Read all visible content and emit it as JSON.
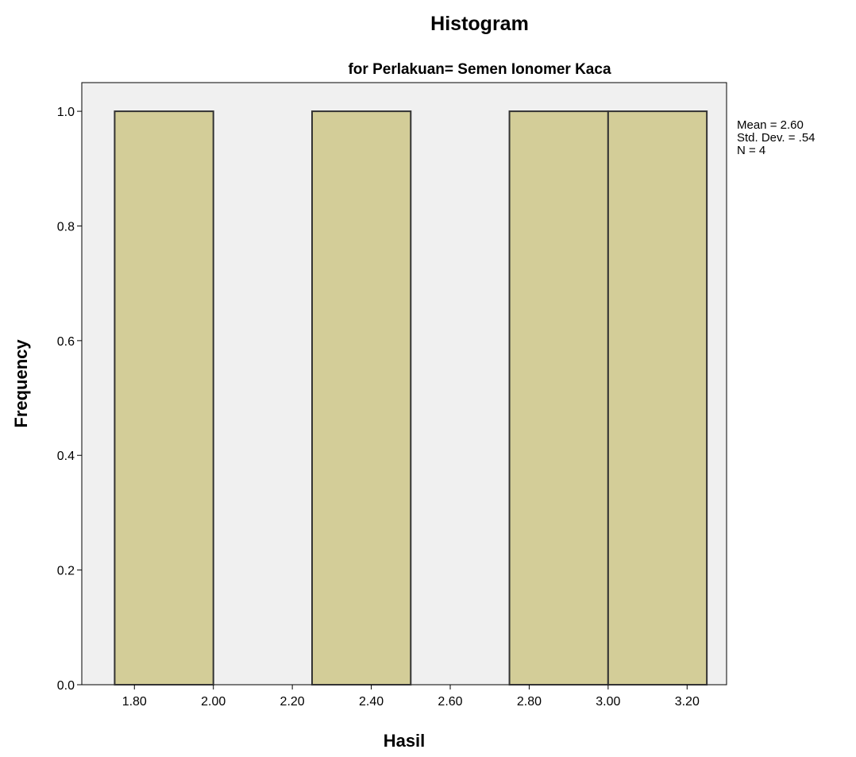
{
  "chart_data": {
    "type": "bar",
    "title": "Histogram",
    "subtitle": "for Perlakuan= Semen Ionomer Kaca",
    "xlabel": "Hasil",
    "ylabel": "Frequency",
    "bins": [
      {
        "start": 1.75,
        "end": 2.0,
        "count": 1
      },
      {
        "start": 2.25,
        "end": 2.5,
        "count": 1
      },
      {
        "start": 2.75,
        "end": 3.0,
        "count": 1
      },
      {
        "start": 3.0,
        "end": 3.25,
        "count": 1
      }
    ],
    "xlim": [
      1.6667,
      3.3
    ],
    "ylim": [
      0.0,
      1.05
    ],
    "x_ticks": [
      "1.80",
      "2.00",
      "2.20",
      "2.40",
      "2.60",
      "2.80",
      "3.00",
      "3.20"
    ],
    "y_ticks": [
      "0.0",
      "0.2",
      "0.4",
      "0.6",
      "0.8",
      "1.0"
    ],
    "stats": [
      "Mean = 2.60",
      "Std. Dev. = .54",
      "N = 4"
    ],
    "grid": false,
    "bar_color": "#d3cd98",
    "plot_background": "#f0f0f0"
  }
}
